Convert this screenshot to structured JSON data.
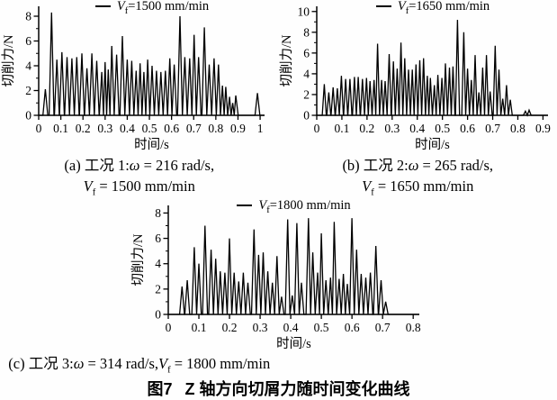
{
  "figure": {
    "label": "图7",
    "title": "Z 轴方向切屑力随时间变化曲线"
  },
  "chart_data": [
    {
      "id": "a",
      "type": "line",
      "legend": {
        "var": "V",
        "sub": "f",
        "rest": "=1500 mm/min"
      },
      "xlabel": "时间/s",
      "ylabel": "切削力/N",
      "xlim": [
        0,
        1
      ],
      "xlim_draw": 1.02,
      "ylim": [
        0,
        8
      ],
      "ylim_draw": 8.8,
      "xticks": [
        0,
        0.1,
        0.2,
        0.3,
        0.4,
        0.5,
        0.6,
        0.7,
        0.8,
        0.9,
        1
      ],
      "xtick_labels": [
        "0",
        "0.1",
        "0.2",
        "0.3",
        "0.4",
        "0.5",
        "0.6",
        "0.7",
        "0.8",
        "0.9",
        "1"
      ],
      "yticks": [
        0,
        2,
        4,
        6,
        8
      ],
      "yminor_step": 1,
      "peak_halfwidth": 0.011,
      "peaks": [
        [
          0.03,
          2.1
        ],
        [
          0.058,
          8.3
        ],
        [
          0.082,
          4.5
        ],
        [
          0.105,
          5.1
        ],
        [
          0.128,
          4.7
        ],
        [
          0.15,
          4.6
        ],
        [
          0.172,
          4.7
        ],
        [
          0.195,
          5.0
        ],
        [
          0.218,
          3.8
        ],
        [
          0.24,
          5.0
        ],
        [
          0.262,
          4.4
        ],
        [
          0.285,
          3.5
        ],
        [
          0.3,
          4.3
        ],
        [
          0.314,
          3.7
        ],
        [
          0.33,
          5.6
        ],
        [
          0.352,
          4.9
        ],
        [
          0.378,
          6.4
        ],
        [
          0.4,
          4.5
        ],
        [
          0.42,
          4.4
        ],
        [
          0.44,
          3.6
        ],
        [
          0.458,
          4.2
        ],
        [
          0.475,
          3.5
        ],
        [
          0.492,
          4.5
        ],
        [
          0.512,
          4.0
        ],
        [
          0.532,
          3.6
        ],
        [
          0.552,
          3.5
        ],
        [
          0.572,
          3.6
        ],
        [
          0.592,
          4.6
        ],
        [
          0.612,
          4.1
        ],
        [
          0.638,
          8.0
        ],
        [
          0.66,
          4.7
        ],
        [
          0.682,
          4.6
        ],
        [
          0.702,
          6.5
        ],
        [
          0.722,
          4.7
        ],
        [
          0.748,
          7.1
        ],
        [
          0.77,
          4.1
        ],
        [
          0.792,
          4.6
        ],
        [
          0.812,
          4.1
        ],
        [
          0.83,
          2.4
        ],
        [
          0.845,
          2.3
        ],
        [
          0.862,
          1.5
        ],
        [
          0.876,
          1.0
        ],
        [
          0.89,
          1.6
        ],
        [
          0.988,
          1.8
        ]
      ],
      "caption": {
        "prefix": "(a) 工况 1:",
        "omega": "ω",
        "omega_val": " = 216 rad/s,",
        "var": "V",
        "sub": "f",
        "var_val": " = 1500 mm/min"
      }
    },
    {
      "id": "b",
      "type": "line",
      "legend": {
        "var": "V",
        "sub": "f",
        "rest": "=1650 mm/min"
      },
      "xlabel": "时间/s",
      "ylabel": "切削力/N",
      "xlim": [
        0,
        0.9
      ],
      "xlim_draw": 0.92,
      "ylim": [
        0,
        10
      ],
      "ylim_draw": 10.5,
      "xticks": [
        0,
        0.1,
        0.2,
        0.3,
        0.4,
        0.5,
        0.6,
        0.7,
        0.8,
        0.9
      ],
      "xtick_labels": [
        "0",
        "0.1",
        "0.2",
        "0.3",
        "0.4",
        "0.5",
        "0.6",
        "0.7",
        "0.8",
        "0.9"
      ],
      "yticks": [
        0,
        2,
        4,
        6,
        8,
        10
      ],
      "yminor_step": 1,
      "peak_halfwidth": 0.008,
      "peaks": [
        [
          0.03,
          3.0
        ],
        [
          0.048,
          2.2
        ],
        [
          0.065,
          2.7
        ],
        [
          0.082,
          2.6
        ],
        [
          0.098,
          3.8
        ],
        [
          0.115,
          3.5
        ],
        [
          0.132,
          3.5
        ],
        [
          0.15,
          3.7
        ],
        [
          0.165,
          3.7
        ],
        [
          0.182,
          3.5
        ],
        [
          0.198,
          3.6
        ],
        [
          0.212,
          3.3
        ],
        [
          0.228,
          3.4
        ],
        [
          0.242,
          6.9
        ],
        [
          0.258,
          3.4
        ],
        [
          0.272,
          3.3
        ],
        [
          0.288,
          5.9
        ],
        [
          0.305,
          5.2
        ],
        [
          0.32,
          4.5
        ],
        [
          0.335,
          7.0
        ],
        [
          0.35,
          5.5
        ],
        [
          0.365,
          4.4
        ],
        [
          0.38,
          4.4
        ],
        [
          0.395,
          4.9
        ],
        [
          0.41,
          5.3
        ],
        [
          0.425,
          5.5
        ],
        [
          0.44,
          3.8
        ],
        [
          0.452,
          3.6
        ],
        [
          0.468,
          2.9
        ],
        [
          0.482,
          3.9
        ],
        [
          0.498,
          3.6
        ],
        [
          0.512,
          5.0
        ],
        [
          0.528,
          4.6
        ],
        [
          0.542,
          4.7
        ],
        [
          0.56,
          9.2
        ],
        [
          0.585,
          8.0
        ],
        [
          0.6,
          4.5
        ],
        [
          0.615,
          3.4
        ],
        [
          0.63,
          5.8
        ],
        [
          0.645,
          2.2
        ],
        [
          0.66,
          4.6
        ],
        [
          0.675,
          5.8
        ],
        [
          0.69,
          2.3
        ],
        [
          0.71,
          6.7
        ],
        [
          0.725,
          4.4
        ],
        [
          0.74,
          1.6
        ],
        [
          0.755,
          2.9
        ],
        [
          0.77,
          1.5
        ],
        [
          0.83,
          0.4
        ],
        [
          0.845,
          0.5
        ]
      ],
      "caption": {
        "prefix": "(b) 工况 2:",
        "omega": "ω",
        "omega_val": " = 265 rad/s,",
        "var": "V",
        "sub": "f",
        "var_val": " = 1650 mm/min"
      }
    },
    {
      "id": "c",
      "type": "line",
      "legend": {
        "var": "V",
        "sub": "f",
        "rest": "=1800 mm/min"
      },
      "xlabel": "时间/s",
      "ylabel": "切削力/N",
      "xlim": [
        0,
        0.8
      ],
      "xlim_draw": 0.82,
      "ylim": [
        0,
        8
      ],
      "ylim_draw": 8.6,
      "xticks": [
        0,
        0.1,
        0.2,
        0.3,
        0.4,
        0.5,
        0.6,
        0.7,
        0.8
      ],
      "xtick_labels": [
        "0",
        "0.1",
        "0.2",
        "0.3",
        "0.4",
        "0.5",
        "0.6",
        "0.7",
        "0.8"
      ],
      "yticks": [
        0,
        2,
        4,
        6,
        8
      ],
      "yminor_step": 1,
      "peak_halfwidth": 0.008,
      "peaks": [
        [
          0.045,
          2.2
        ],
        [
          0.062,
          2.7
        ],
        [
          0.085,
          5.3
        ],
        [
          0.1,
          4.0
        ],
        [
          0.12,
          7.0
        ],
        [
          0.14,
          5.1
        ],
        [
          0.155,
          4.4
        ],
        [
          0.17,
          3.4
        ],
        [
          0.185,
          3.3
        ],
        [
          0.2,
          6.0
        ],
        [
          0.215,
          3.3
        ],
        [
          0.23,
          2.6
        ],
        [
          0.245,
          3.3
        ],
        [
          0.26,
          2.5
        ],
        [
          0.28,
          6.7
        ],
        [
          0.295,
          4.7
        ],
        [
          0.31,
          4.9
        ],
        [
          0.325,
          3.4
        ],
        [
          0.34,
          2.5
        ],
        [
          0.355,
          4.6
        ],
        [
          0.37,
          1.4
        ],
        [
          0.39,
          7.5
        ],
        [
          0.405,
          1.5
        ],
        [
          0.42,
          7.2
        ],
        [
          0.435,
          2.5
        ],
        [
          0.458,
          7.6
        ],
        [
          0.472,
          4.9
        ],
        [
          0.488,
          3.3
        ],
        [
          0.5,
          6.4
        ],
        [
          0.515,
          2.7
        ],
        [
          0.53,
          2.9
        ],
        [
          0.542,
          7.3
        ],
        [
          0.558,
          2.8
        ],
        [
          0.572,
          3.2
        ],
        [
          0.585,
          2.4
        ],
        [
          0.6,
          7.6
        ],
        [
          0.615,
          5.1
        ],
        [
          0.63,
          3.2
        ],
        [
          0.645,
          2.9
        ],
        [
          0.66,
          3.3
        ],
        [
          0.678,
          5.4
        ],
        [
          0.695,
          2.7
        ],
        [
          0.71,
          1.0
        ]
      ],
      "caption": {
        "prefix": "(c) 工况 3:",
        "omega": "ω",
        "omega_val": " = 314 rad/s,",
        "var": "V",
        "sub": "f",
        "var_val": " = 1800 mm/min"
      }
    }
  ]
}
